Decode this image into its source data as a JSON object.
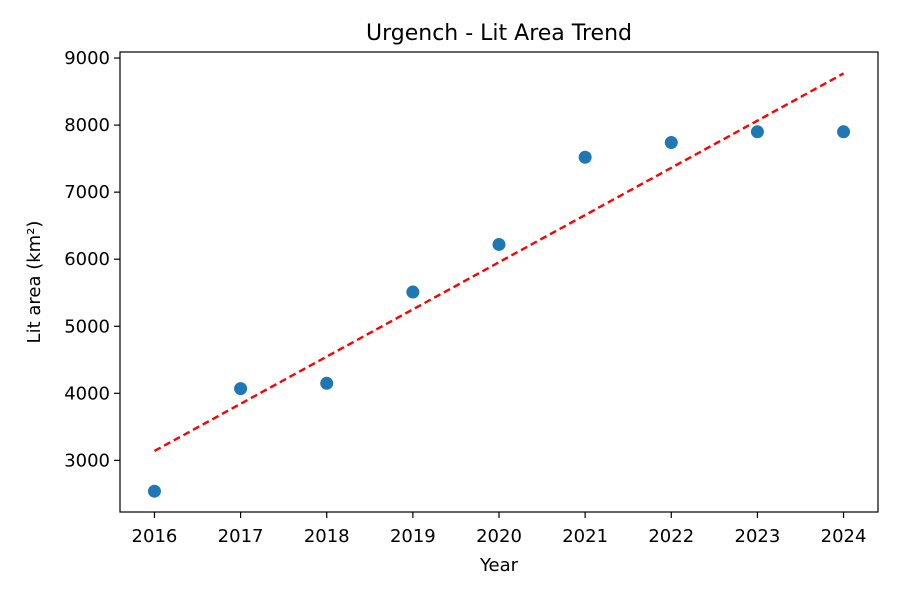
{
  "chart_data": {
    "type": "scatter",
    "title": "Urgench - Lit Area Trend",
    "xlabel": "Year",
    "ylabel": "Lit area (km²)",
    "x": [
      2016,
      2017,
      2018,
      2019,
      2020,
      2021,
      2022,
      2023,
      2024
    ],
    "y": [
      2540,
      4070,
      4150,
      5510,
      6220,
      7520,
      7740,
      7900,
      7900
    ],
    "trend_line": {
      "x": [
        2016,
        2024
      ],
      "y": [
        3140,
        8770
      ]
    },
    "x_ticks": [
      2016,
      2017,
      2018,
      2019,
      2020,
      2021,
      2022,
      2023,
      2024
    ],
    "y_ticks": [
      3000,
      4000,
      5000,
      6000,
      7000,
      8000,
      9000
    ],
    "xlim": [
      2015.6,
      2024.4
    ],
    "ylim": [
      2230,
      9090
    ],
    "grid": false,
    "legend": "none",
    "colors": {
      "points": "#1f77b4",
      "trend": "#ff0000"
    }
  }
}
